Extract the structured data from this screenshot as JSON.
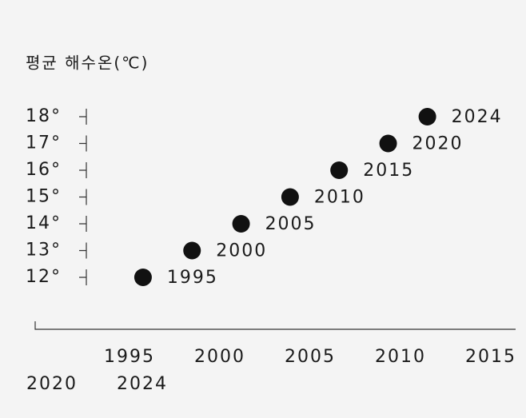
{
  "chart_data": {
    "type": "scatter",
    "title": "평균 해수온(℃)",
    "x": [
      1995,
      2000,
      2005,
      2010,
      2015,
      2020,
      2024
    ],
    "values": [
      12,
      13,
      14,
      15,
      16,
      17,
      18
    ],
    "color": "#111111",
    "xlim": [
      1984,
      2033
    ],
    "ylim": [
      11,
      19
    ],
    "yticks": [
      {
        "value": 12,
        "label": "12°"
      },
      {
        "value": 13,
        "label": "13°"
      },
      {
        "value": 14,
        "label": "14°"
      },
      {
        "value": 15,
        "label": "15°"
      },
      {
        "value": 16,
        "label": "16°"
      },
      {
        "value": 17,
        "label": "17°"
      },
      {
        "value": 18,
        "label": "18°"
      }
    ]
  }
}
